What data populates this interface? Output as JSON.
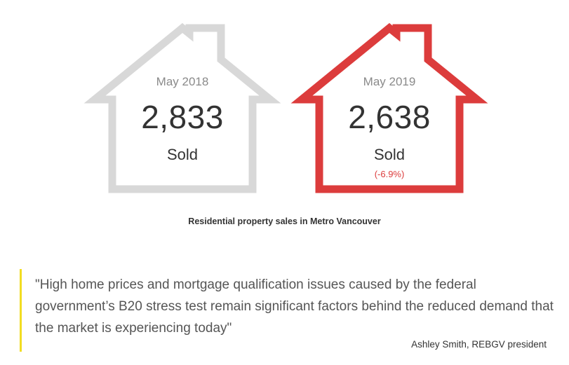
{
  "houses": [
    {
      "period": "May 2018",
      "count": "2,833",
      "label": "Sold",
      "change": "",
      "outline_color": "#d8d8d8"
    },
    {
      "period": "May 2019",
      "count": "2,638",
      "label": "Sold",
      "change": "(-6.9%)",
      "outline_color": "#dc3c3c",
      "change_color": "#dc3c3c"
    }
  ],
  "caption": "Residential property sales in Metro Vancouver",
  "quote": {
    "text": "\"High home prices and mortgage qualification issues caused by the federal government’s B20 stress test remain significant factors behind the reduced demand that the market is experiencing today\"",
    "attribution": "Ashley Smith, REBGV president",
    "accent_color": "#f2dd22"
  }
}
